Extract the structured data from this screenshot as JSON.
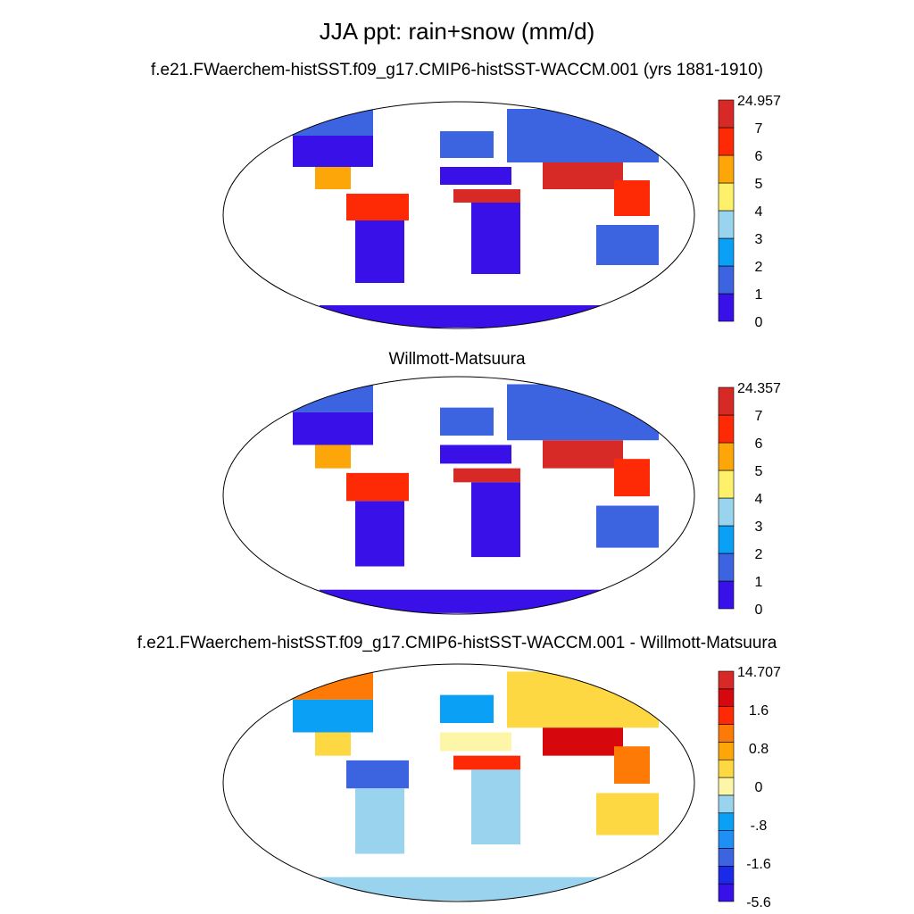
{
  "main_title": "JJA ppt: rain+snow (mm/d)",
  "panels": [
    {
      "title": "f.e21.FWaerchem-histSST.f09_g17.CMIP6-histSST-WACCM.001 (yrs 1881-1910)",
      "colorbar": {
        "colors": [
          "#3a10e8",
          "#3d64e0",
          "#0aa0f5",
          "#9ad3ee",
          "#fdf06a",
          "#fca60a",
          "#fe2a05",
          "#d72a26"
        ],
        "labels": [
          "24.957",
          "7",
          "6",
          "5",
          "4",
          "3",
          "2",
          "1",
          "0"
        ]
      }
    },
    {
      "title": "Willmott-Matsuura",
      "colorbar": {
        "colors": [
          "#3a10e8",
          "#3d64e0",
          "#0aa0f5",
          "#9ad3ee",
          "#fdf06a",
          "#fca60a",
          "#fe2a05",
          "#d72a26"
        ],
        "labels": [
          "24.357",
          "7",
          "6",
          "5",
          "4",
          "3",
          "2",
          "1",
          "0"
        ]
      }
    },
    {
      "title": "f.e21.FWaerchem-histSST.f09_g17.CMIP6-histSST-WACCM.001 - Willmott-Matsuura",
      "colorbar": {
        "colors": [
          "#3a10e8",
          "#1a2ae8",
          "#3d64e0",
          "#1f8ff5",
          "#0aa0f5",
          "#9ad3ee",
          "#fdf6a8",
          "#fdd843",
          "#fca60a",
          "#fd7a06",
          "#fe2a05",
          "#d7080d",
          "#d72a26"
        ],
        "labels": [
          "14.707",
          "",
          "1.6",
          "",
          "0.8",
          "",
          "0",
          "",
          "-.8",
          "",
          "-1.6",
          "",
          "-5.6"
        ]
      }
    }
  ]
}
